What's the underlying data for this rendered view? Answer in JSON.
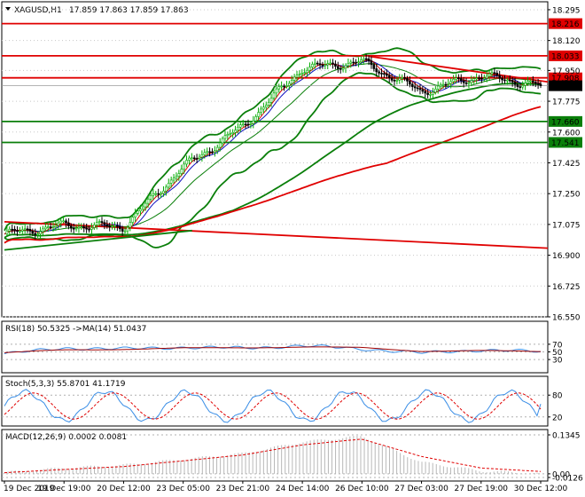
{
  "header": {
    "symbol": "XAGUSD,H1",
    "ohlc": "17.859 17.863 17.859 17.863"
  },
  "colors": {
    "bull_candle": "#00aa00",
    "bear_candle": "#000000",
    "bollinger": "#0a7f0a",
    "sma_long": "#0a7f0a",
    "sma_long2": "#e00000",
    "trendline": "#e00000",
    "resistance": "#e00000",
    "support": "#0a7f0a",
    "ma_fast": "#1010c0",
    "ma_red": "#e00000",
    "rsi_line": "#3a8ee6",
    "rsi_signal": "#a00000",
    "stoch_main": "#3a8ee6",
    "stoch_signal": "#e00000",
    "macd_hist": "#b8b8b8",
    "macd_signal": "#e00000",
    "current_price_bg": "#000000"
  },
  "time_axis": [
    "19 Dec 2019",
    "19 Dec 19:00",
    "20 Dec 12:00",
    "23 Dec 05:00",
    "23 Dec 21:00",
    "24 Dec 14:00",
    "26 Dec 10:00",
    "27 Dec 03:00",
    "27 Dec 19:00",
    "30 Dec 12:00"
  ],
  "chart_data": [
    {
      "type": "line",
      "name": "price",
      "x": [
        "19 Dec 2019",
        "19 Dec 19:00",
        "20 Dec 12:00",
        "23 Dec 05:00",
        "23 Dec 21:00",
        "24 Dec 14:00",
        "26 Dec 10:00",
        "27 Dec 03:00",
        "27 Dec 19:00",
        "30 Dec 12:00"
      ],
      "series": [
        {
          "name": "close",
          "values": [
            17.02,
            17.07,
            17.06,
            17.4,
            17.63,
            17.96,
            18.0,
            17.83,
            17.92,
            17.863
          ]
        }
      ],
      "ylim": [
        16.55,
        18.33
      ],
      "y_ticks": [
        18.295,
        18.12,
        17.95,
        17.775,
        17.6,
        17.425,
        17.25,
        17.075,
        16.9,
        16.725,
        16.55
      ],
      "price_labels": [
        {
          "value": 18.216,
          "text": "18.216",
          "kind": "resistance"
        },
        {
          "value": 18.033,
          "text": "18.033",
          "kind": "resistance"
        },
        {
          "value": 17.908,
          "text": "17.908",
          "kind": "resistance"
        },
        {
          "value": 17.863,
          "text": "17.863",
          "kind": "current"
        },
        {
          "value": 17.66,
          "text": "17.660",
          "kind": "support"
        },
        {
          "value": 17.541,
          "text": "17.541",
          "kind": "support"
        }
      ]
    },
    {
      "type": "line",
      "name": "rsi",
      "title": "RSI(18) 50.5325  ->MA(14) 51.0437",
      "ylim": [
        0,
        100
      ],
      "y_ticks": [
        70,
        50,
        30
      ],
      "series": [
        {
          "name": "RSI(18)",
          "values": [
            45,
            60,
            58,
            62,
            60,
            66,
            58,
            47,
            55,
            50.5325
          ]
        },
        {
          "name": "MA(14)",
          "values": [
            48,
            55,
            57,
            60,
            61,
            63,
            61,
            52,
            53,
            51.0437
          ]
        }
      ]
    },
    {
      "type": "line",
      "name": "stochastic",
      "title": "Stoch(5,3,3) 55.8701 41.1719",
      "ylim": [
        0,
        100
      ],
      "y_ticks": [
        80,
        20
      ],
      "series": [
        {
          "name": "Stoch(5,3,3)",
          "values": [
            20,
            85,
            30,
            85,
            20,
            80,
            25,
            75,
            15,
            55.8701
          ]
        },
        {
          "name": "Signal",
          "values": [
            30,
            75,
            40,
            75,
            30,
            72,
            35,
            65,
            25,
            41.1719
          ]
        }
      ]
    },
    {
      "type": "bar",
      "name": "macd",
      "title": "MACD(12,26,9) 0.0002 0.0081",
      "ylim": [
        -0.0126,
        0.1345
      ],
      "y_ticks": [
        0.1345,
        0.0,
        -0.0126
      ],
      "y_tick_labels": [
        "0.1345",
        "0.00",
        "-0.0126"
      ],
      "series": [
        {
          "name": "MACD",
          "values": [
            0.005,
            0.02,
            0.03,
            0.05,
            0.07,
            0.11,
            0.13,
            0.04,
            0.01,
            0.0002
          ]
        },
        {
          "name": "Signal",
          "values": [
            0.004,
            0.015,
            0.025,
            0.045,
            0.065,
            0.1,
            0.12,
            0.06,
            0.02,
            0.0081
          ]
        }
      ]
    }
  ]
}
